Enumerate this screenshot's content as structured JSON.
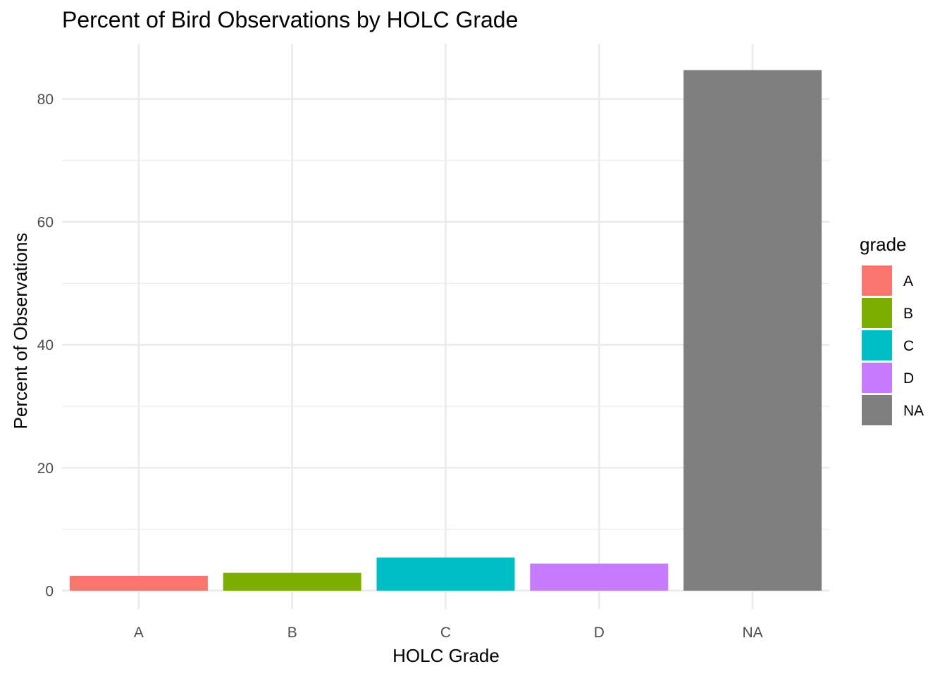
{
  "chart_data": {
    "type": "bar",
    "title": "Percent of Bird Observations by HOLC Grade",
    "xlabel": "HOLC Grade",
    "ylabel": "Percent of Observations",
    "categories": [
      "A",
      "B",
      "C",
      "D",
      "NA"
    ],
    "values": [
      2.4,
      2.9,
      5.4,
      4.4,
      84.7
    ],
    "ylim": [
      -3,
      89
    ],
    "yticks": [
      0,
      20,
      40,
      60,
      80
    ],
    "grid": true,
    "legend": {
      "title": "grade",
      "position": "right",
      "entries": [
        "A",
        "B",
        "C",
        "D",
        "NA"
      ]
    },
    "colors": [
      "#F8766D",
      "#7CAE00",
      "#00BFC4",
      "#C77CFF",
      "#7F7F7F"
    ]
  }
}
